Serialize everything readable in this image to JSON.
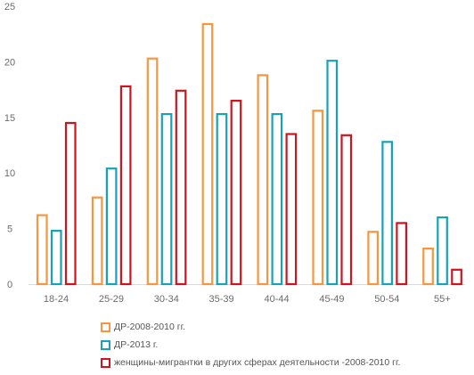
{
  "chart_data": {
    "type": "bar",
    "categories": [
      "18-24",
      "25-29",
      "30-34",
      "35-39",
      "40-44",
      "45-49",
      "50-54",
      "55+"
    ],
    "series": [
      {
        "name": "ДР-2008-2010 гг.",
        "color": "#F7963E",
        "values": [
          6.2,
          7.8,
          20.3,
          23.4,
          18.8,
          15.6,
          4.7,
          3.2
        ]
      },
      {
        "name": "ДР-2013 г.",
        "color": "#17A2B8",
        "values": [
          4.8,
          10.4,
          15.3,
          15.3,
          15.3,
          20.1,
          12.8,
          6.0
        ]
      },
      {
        "name": "женщины-мигрантки в других сферах деятельности -2008-2010 гг.",
        "color": "#D0141E",
        "values": [
          14.5,
          17.8,
          17.4,
          16.5,
          13.5,
          13.4,
          5.5,
          1.3
        ]
      }
    ],
    "y_ticks": [
      "0",
      "5",
      "10",
      "15",
      "20",
      "25"
    ],
    "ylim": [
      0,
      25
    ],
    "grid": false,
    "legend_position": "bottom"
  }
}
